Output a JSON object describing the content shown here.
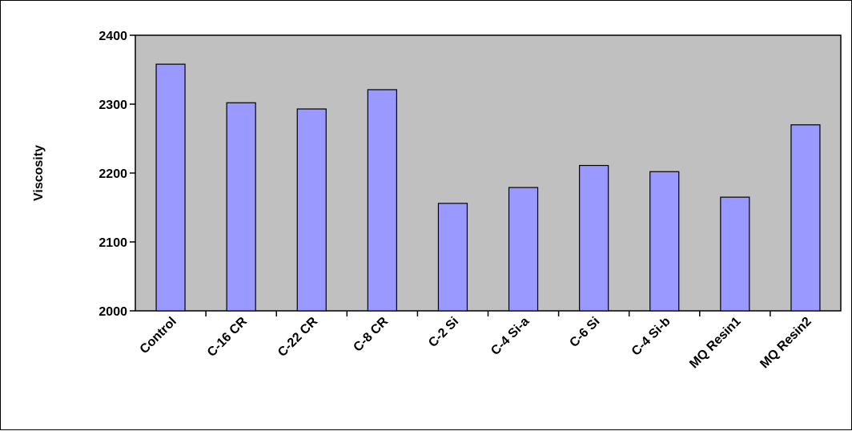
{
  "chart_data": {
    "type": "bar",
    "title": "",
    "xlabel": "",
    "ylabel": "Viscosity",
    "ylim": [
      2000,
      2400
    ],
    "yticks": [
      2000,
      2100,
      2200,
      2300,
      2400
    ],
    "grid": false,
    "legend": "none",
    "categories": [
      "Control",
      "C-16 CR",
      "C-22 CR",
      "C-8 CR",
      "C-2 Si",
      "C-4 Si-a",
      "C-6 Si",
      "C-4 Si-b",
      "MQ Resin1",
      "MQ Resin2"
    ],
    "values": [
      2358,
      2302,
      2293,
      2321,
      2156,
      2179,
      2211,
      2202,
      2165,
      2270
    ],
    "colors": {
      "bar_fill": "#9999ff",
      "plot_background": "#c0c0c0",
      "outline": "#000000"
    }
  }
}
